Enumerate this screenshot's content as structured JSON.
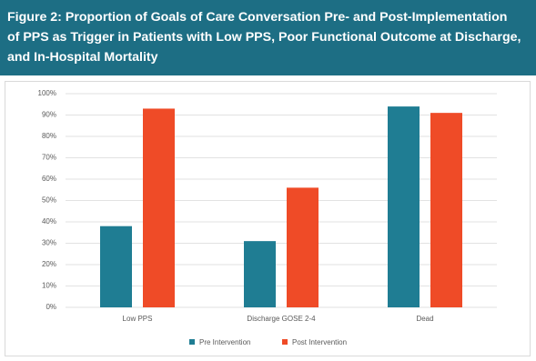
{
  "chart_data": {
    "type": "bar",
    "title": [
      "Figure 2: Proportion of Goals of Care Conversation Pre- and Post-Implementation",
      "of PPS as Trigger in Patients with Low PPS, Poor Functional Outcome at Discharge,",
      "and In-Hospital Mortality"
    ],
    "categories": [
      "Low PPS",
      "Discharge GOSE 2-4",
      "Dead"
    ],
    "series": [
      {
        "name": "Pre Intervention",
        "color": "#1f7d93",
        "values": [
          38,
          31,
          94
        ]
      },
      {
        "name": "Post Intervention",
        "color": "#ef4b27",
        "values": [
          93,
          56,
          91
        ]
      }
    ],
    "ylim": [
      0,
      100
    ],
    "yticks": [
      {
        "value": 0,
        "label": "0%"
      },
      {
        "value": 10,
        "label": "10%"
      },
      {
        "value": 20,
        "label": "20%"
      },
      {
        "value": 30,
        "label": "30%"
      },
      {
        "value": 40,
        "label": "40%"
      },
      {
        "value": 50,
        "label": "50%"
      },
      {
        "value": 60,
        "label": "60%"
      },
      {
        "value": 70,
        "label": "70%"
      },
      {
        "value": 80,
        "label": "80%"
      },
      {
        "value": 90,
        "label": "90%"
      },
      {
        "value": 100,
        "label": "100%"
      }
    ],
    "grid": true,
    "legend": "bottom"
  }
}
